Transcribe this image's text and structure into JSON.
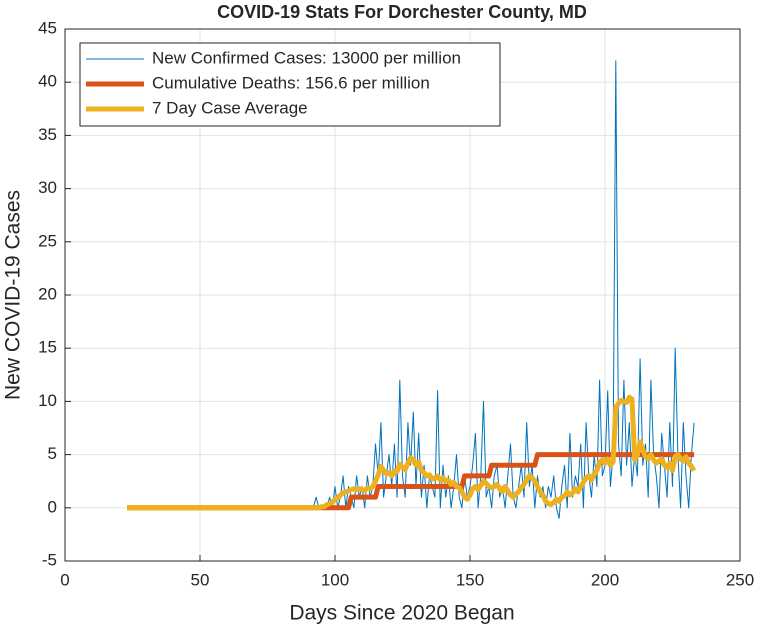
{
  "chart_data": {
    "type": "line",
    "title": "COVID-19 Stats For Dorchester County, MD",
    "x_label": "Days Since 2020 Began",
    "y_label": "New COVID-19 Cases",
    "x": [
      23,
      90,
      91,
      92,
      93,
      94,
      95,
      96,
      97,
      98,
      99,
      100,
      101,
      102,
      103,
      104,
      105,
      106,
      107,
      108,
      109,
      110,
      111,
      112,
      113,
      114,
      115,
      116,
      117,
      118,
      119,
      120,
      121,
      122,
      123,
      124,
      125,
      126,
      127,
      128,
      129,
      130,
      131,
      132,
      133,
      134,
      135,
      136,
      137,
      138,
      139,
      140,
      141,
      142,
      143,
      144,
      145,
      146,
      147,
      148,
      149,
      150,
      151,
      152,
      153,
      154,
      155,
      156,
      157,
      158,
      159,
      160,
      161,
      162,
      163,
      164,
      165,
      166,
      167,
      168,
      169,
      170,
      171,
      172,
      173,
      174,
      175,
      176,
      177,
      178,
      179,
      180,
      181,
      182,
      183,
      184,
      185,
      186,
      187,
      188,
      189,
      190,
      191,
      192,
      193,
      194,
      195,
      196,
      197,
      198,
      199,
      200,
      201,
      202,
      203,
      204,
      205,
      206,
      207,
      208,
      209,
      210,
      211,
      212,
      213,
      214,
      215,
      216,
      217,
      218,
      219,
      220,
      221,
      222,
      223,
      224,
      225,
      226,
      227,
      228,
      229,
      230,
      231,
      232,
      233
    ],
    "series": [
      {
        "name": "New Confirmed Cases: 13000 per million",
        "color": "#0072bd",
        "line_width": 1,
        "values": [
          0,
          0,
          0,
          0,
          1,
          0,
          0,
          0,
          0,
          1,
          0,
          2,
          0,
          1,
          3,
          0,
          2,
          1,
          0,
          3,
          1,
          2,
          0,
          3,
          1,
          2,
          6,
          3,
          8,
          1,
          3,
          5,
          2,
          6,
          1,
          12,
          3,
          1,
          8,
          4,
          9,
          2,
          7,
          1,
          4,
          0,
          3,
          2,
          1,
          11,
          0,
          4,
          1,
          3,
          0,
          2,
          5,
          1,
          0,
          3,
          1,
          2,
          4,
          7,
          0,
          3,
          10,
          1,
          2,
          0,
          3,
          4,
          1,
          2,
          0,
          3,
          6,
          1,
          0,
          2,
          4,
          1,
          8,
          2,
          4,
          0,
          3,
          1,
          2,
          0,
          2,
          1,
          3,
          0,
          -1,
          2,
          4,
          0,
          7,
          1,
          3,
          2,
          6,
          0,
          8,
          3,
          1,
          5,
          2,
          12,
          3,
          4,
          11,
          2,
          5,
          42,
          6,
          3,
          12,
          4,
          8,
          2,
          5,
          3,
          14,
          4,
          6,
          1,
          12,
          5,
          3,
          0,
          7,
          4,
          1,
          8,
          2,
          15,
          5,
          0,
          8,
          3,
          0,
          5,
          8
        ]
      },
      {
        "name": "Cumulative Deaths: 156.6 per million",
        "color": "#d95319",
        "line_width": 5,
        "values": [
          0,
          0,
          0,
          0,
          0,
          0,
          0,
          0,
          0,
          0,
          0,
          0,
          0,
          0,
          0,
          0,
          0,
          1,
          1,
          1,
          1,
          1,
          1,
          1,
          1,
          1,
          1,
          2,
          2,
          2,
          2,
          2,
          2,
          2,
          2,
          2,
          2,
          2,
          2,
          2,
          2,
          2,
          2,
          2,
          2,
          2,
          2,
          2,
          2,
          2,
          2,
          2,
          2,
          2,
          2,
          2,
          2,
          2,
          2,
          3,
          3,
          3,
          3,
          3,
          3,
          3,
          3,
          3,
          3,
          4,
          4,
          4,
          4,
          4,
          4,
          4,
          4,
          4,
          4,
          4,
          4,
          4,
          4,
          4,
          4,
          4,
          5,
          5,
          5,
          5,
          5,
          5,
          5,
          5,
          5,
          5,
          5,
          5,
          5,
          5,
          5,
          5,
          5,
          5,
          5,
          5,
          5,
          5,
          5,
          5,
          5,
          5,
          5,
          5,
          5,
          5,
          5,
          5,
          5,
          5,
          5,
          5,
          5,
          5,
          5,
          5,
          5,
          5,
          5,
          5,
          5,
          5,
          5,
          5,
          5,
          5,
          5,
          5,
          5,
          5,
          5,
          5,
          5,
          5,
          5
        ]
      },
      {
        "name": "7 Day Case Average",
        "color": "#edb120",
        "line_width": 5,
        "values": [
          0,
          0,
          0,
          0,
          0,
          0,
          0.1,
          0.1,
          0.3,
          0.4,
          0.5,
          0.8,
          0.9,
          1.2,
          1.4,
          1.5,
          1.6,
          1.7,
          1.8,
          1.7,
          1.8,
          1.7,
          1.6,
          1.9,
          1.8,
          2,
          2.5,
          3.1,
          3.9,
          3.5,
          3.2,
          3.3,
          3,
          3.5,
          3.4,
          4.1,
          3.8,
          3.6,
          4.2,
          4.7,
          4.5,
          4,
          4.3,
          3.5,
          3.3,
          3,
          3.1,
          2.7,
          2.8,
          3,
          2.6,
          2.8,
          2.5,
          2.6,
          2.2,
          2.4,
          2,
          1.9,
          1.5,
          1,
          0.8,
          1.2,
          1.8,
          2,
          1.7,
          2.1,
          2.5,
          2.3,
          2,
          1.9,
          2,
          2.2,
          1.8,
          1.5,
          2,
          1.6,
          1.2,
          1,
          1.3,
          1.5,
          1.9,
          2.2,
          2.6,
          3,
          2.8,
          2.5,
          2,
          1.5,
          1.2,
          0.6,
          0.4,
          0.3,
          0.5,
          0.8,
          0.6,
          1,
          1.1,
          1.5,
          1.2,
          1.4,
          1.8,
          1.5,
          2,
          2.4,
          2.8,
          3,
          2.6,
          3.2,
          3.5,
          4.3,
          4.5,
          4.2,
          4.6,
          4,
          4.3,
          9.5,
          9.8,
          10.1,
          10,
          9.9,
          10.4,
          10.2,
          4.5,
          5,
          6.2,
          5.5,
          4.8,
          4.6,
          5,
          4.5,
          4.2,
          4.4,
          4.6,
          4,
          3.8,
          4.2,
          3.5,
          4.8,
          5,
          4.6,
          4.4,
          4.8,
          4.2,
          3.9,
          3.5
        ]
      }
    ],
    "xlim": [
      0,
      250
    ],
    "xticks": [
      0,
      50,
      100,
      150,
      200,
      250
    ],
    "ylim": [
      -5,
      45
    ],
    "yticks": [
      -5,
      0,
      5,
      10,
      15,
      20,
      25,
      30,
      35,
      40,
      45
    ],
    "grid": true,
    "legend": "northwest"
  }
}
